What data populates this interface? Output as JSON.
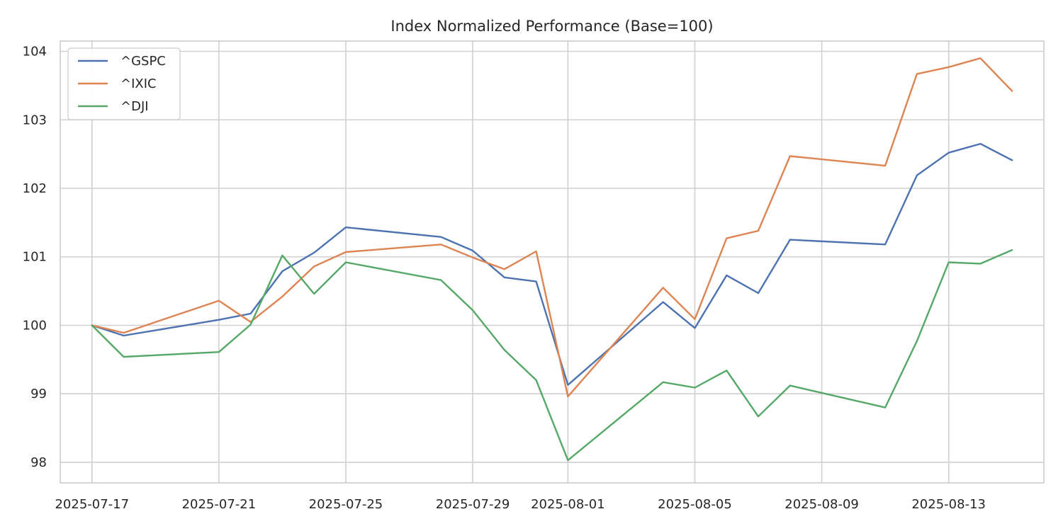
{
  "chart_data": {
    "type": "line",
    "title": "Index Normalized Performance (Base=100)",
    "xlabel": "",
    "ylabel": "",
    "x": [
      "2025-07-17",
      "2025-07-18",
      "2025-07-21",
      "2025-07-22",
      "2025-07-23",
      "2025-07-24",
      "2025-07-25",
      "2025-07-28",
      "2025-07-29",
      "2025-07-30",
      "2025-07-31",
      "2025-08-01",
      "2025-08-04",
      "2025-08-05",
      "2025-08-06",
      "2025-08-07",
      "2025-08-08",
      "2025-08-11",
      "2025-08-12",
      "2025-08-13",
      "2025-08-14",
      "2025-08-15"
    ],
    "x_ticks": [
      "2025-07-17",
      "2025-07-21",
      "2025-07-25",
      "2025-07-29",
      "2025-08-01",
      "2025-08-05",
      "2025-08-09",
      "2025-08-13"
    ],
    "xlim": [
      "2025-07-16",
      "2025-08-16"
    ],
    "ylim": [
      97.7,
      104.15
    ],
    "y_ticks": [
      98,
      99,
      100,
      101,
      102,
      103,
      104
    ],
    "grid": true,
    "legend_position": "top-left",
    "series": [
      {
        "name": "^GSPC",
        "color": "#4c72b0",
        "values": [
          100.0,
          99.85,
          100.08,
          100.17,
          100.79,
          101.06,
          101.43,
          101.29,
          101.09,
          100.7,
          100.64,
          99.13,
          100.34,
          99.96,
          100.73,
          100.47,
          101.25,
          101.18,
          102.19,
          102.52,
          102.65,
          102.41
        ]
      },
      {
        "name": "^IXIC",
        "color": "#dd8452",
        "values": [
          100.0,
          99.89,
          100.36,
          100.05,
          100.42,
          100.86,
          101.07,
          101.18,
          100.99,
          100.82,
          101.08,
          98.96,
          100.55,
          100.09,
          101.27,
          101.38,
          102.47,
          102.33,
          103.67,
          103.77,
          103.9,
          103.42
        ]
      },
      {
        "name": "^DJI",
        "color": "#55a868",
        "values": [
          100.0,
          99.54,
          99.61,
          100.01,
          101.02,
          100.46,
          100.92,
          100.66,
          100.22,
          99.64,
          99.2,
          98.03,
          99.17,
          99.09,
          99.34,
          98.67,
          99.12,
          98.8,
          99.77,
          100.92,
          100.9,
          101.1
        ]
      }
    ]
  }
}
